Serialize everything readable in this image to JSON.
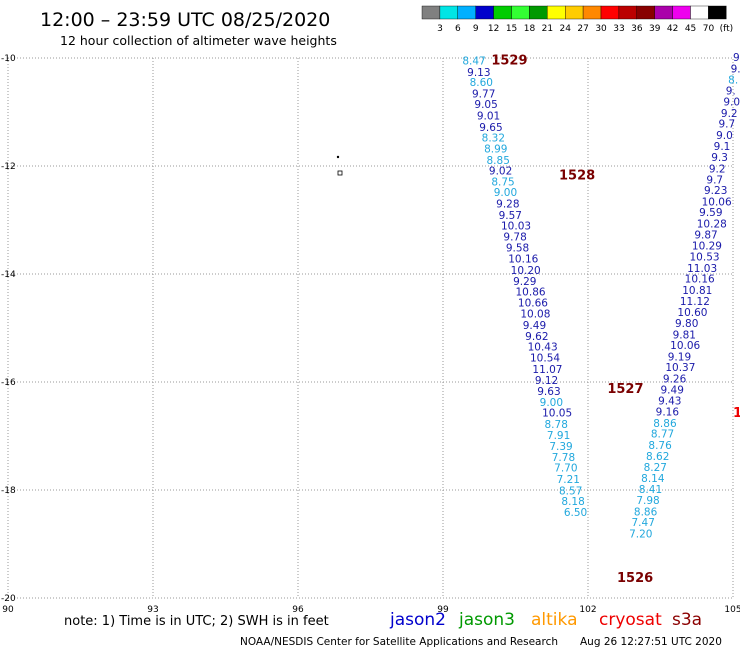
{
  "header": {
    "title": "12:00 – 23:59 UTC 08/25/2020",
    "subtitle": "12 hour collection of altimeter wave heights"
  },
  "legend": {
    "colors": [
      "#808080",
      "#00e5e5",
      "#00b0ff",
      "#0000cc",
      "#00cc00",
      "#33ff33",
      "#009900",
      "#ffff00",
      "#ffcc00",
      "#ff8800",
      "#ff0000",
      "#bb0000",
      "#880000",
      "#aa00aa",
      "#ee00ee",
      "#ffffff",
      "#000000"
    ],
    "labels": [
      "3",
      "6",
      "9",
      "12",
      "15",
      "18",
      "21",
      "24",
      "27",
      "30",
      "33",
      "36",
      "39",
      "42",
      "45",
      "70",
      "(ft)"
    ]
  },
  "axes": {
    "lon_labels": [
      "90",
      "93",
      "96",
      "99",
      "102",
      "105"
    ],
    "lat_labels": [
      "-10",
      "-12",
      "-14",
      "-16",
      "-18",
      "-20"
    ],
    "lon_min": 90,
    "lon_max": 105,
    "lat_min": -20,
    "lat_max": -10
  },
  "colors": {
    "jason2": "#0000cc",
    "jason3": "#009900",
    "altika": "#ff9900",
    "cryosat": "#ee0000",
    "s3a": "#8b0000",
    "light": "#22a8dd",
    "dark": "#1a1aaa",
    "pass": "#7a0000",
    "grid": "#999999"
  },
  "passes": [
    {
      "label": "1529",
      "lon": 100.0,
      "lat": -10.12
    },
    {
      "label": "1528",
      "lon": 101.4,
      "lat": -12.25
    },
    {
      "label": "1527",
      "lon": 102.4,
      "lat": -16.2
    },
    {
      "label": "1526",
      "lon": 102.6,
      "lat": -19.7
    }
  ],
  "partial_pass": {
    "label": "1",
    "lon": 105.0,
    "lat": -16.65
  },
  "tracks": [
    {
      "name": "west",
      "points": [
        {
          "v": "8.47",
          "lon": 99.4,
          "lat": -10.12,
          "c": "light"
        },
        {
          "v": "9.13",
          "lon": 99.5,
          "lat": -10.33,
          "c": "dark"
        },
        {
          "v": "8.60",
          "lon": 99.55,
          "lat": -10.52,
          "c": "light"
        },
        {
          "v": "9.77",
          "lon": 99.6,
          "lat": -10.73,
          "c": "dark"
        },
        {
          "v": "9.05",
          "lon": 99.65,
          "lat": -10.93,
          "c": "dark"
        },
        {
          "v": "9.01",
          "lon": 99.7,
          "lat": -11.14,
          "c": "dark"
        },
        {
          "v": "9.65",
          "lon": 99.75,
          "lat": -11.35,
          "c": "dark"
        },
        {
          "v": "8.32",
          "lon": 99.8,
          "lat": -11.55,
          "c": "light"
        },
        {
          "v": "8.99",
          "lon": 99.85,
          "lat": -11.75,
          "c": "light"
        },
        {
          "v": "8.85",
          "lon": 99.9,
          "lat": -11.96,
          "c": "light"
        },
        {
          "v": "9.02",
          "lon": 99.95,
          "lat": -12.16,
          "c": "dark"
        },
        {
          "v": "8.75",
          "lon": 100.0,
          "lat": -12.36,
          "c": "light"
        },
        {
          "v": "9.00",
          "lon": 100.05,
          "lat": -12.56,
          "c": "light"
        },
        {
          "v": "9.28",
          "lon": 100.1,
          "lat": -12.77,
          "c": "dark"
        },
        {
          "v": "9.57",
          "lon": 100.15,
          "lat": -12.98,
          "c": "dark"
        },
        {
          "v": "10.03",
          "lon": 100.2,
          "lat": -13.18,
          "c": "dark"
        },
        {
          "v": "9.78",
          "lon": 100.25,
          "lat": -13.38,
          "c": "dark"
        },
        {
          "v": "9.58",
          "lon": 100.3,
          "lat": -13.58,
          "c": "dark"
        },
        {
          "v": "10.16",
          "lon": 100.35,
          "lat": -13.79,
          "c": "dark"
        },
        {
          "v": "10.20",
          "lon": 100.4,
          "lat": -14.0,
          "c": "dark"
        },
        {
          "v": "9.29",
          "lon": 100.45,
          "lat": -14.2,
          "c": "dark"
        },
        {
          "v": "10.86",
          "lon": 100.5,
          "lat": -14.4,
          "c": "dark"
        },
        {
          "v": "10.66",
          "lon": 100.55,
          "lat": -14.6,
          "c": "dark"
        },
        {
          "v": "10.08",
          "lon": 100.6,
          "lat": -14.81,
          "c": "dark"
        },
        {
          "v": "9.49",
          "lon": 100.65,
          "lat": -15.02,
          "c": "dark"
        },
        {
          "v": "9.62",
          "lon": 100.7,
          "lat": -15.22,
          "c": "dark"
        },
        {
          "v": "10.43",
          "lon": 100.75,
          "lat": -15.42,
          "c": "dark"
        },
        {
          "v": "10.54",
          "lon": 100.8,
          "lat": -15.62,
          "c": "dark"
        },
        {
          "v": "11.07",
          "lon": 100.85,
          "lat": -15.83,
          "c": "dark"
        },
        {
          "v": "9.12",
          "lon": 100.9,
          "lat": -16.04,
          "c": "dark"
        },
        {
          "v": "9.63",
          "lon": 100.95,
          "lat": -16.24,
          "c": "dark"
        },
        {
          "v": "9.00",
          "lon": 101.0,
          "lat": -16.44,
          "c": "light"
        },
        {
          "v": "10.05",
          "lon": 101.05,
          "lat": -16.64,
          "c": "dark"
        },
        {
          "v": "8.78",
          "lon": 101.1,
          "lat": -16.85,
          "c": "light"
        },
        {
          "v": "7.91",
          "lon": 101.15,
          "lat": -17.06,
          "c": "light"
        },
        {
          "v": "7.39",
          "lon": 101.2,
          "lat": -17.26,
          "c": "light"
        },
        {
          "v": "7.78",
          "lon": 101.25,
          "lat": -17.46,
          "c": "light"
        },
        {
          "v": "7.70",
          "lon": 101.3,
          "lat": -17.66,
          "c": "light"
        },
        {
          "v": "7.21",
          "lon": 101.35,
          "lat": -17.87,
          "c": "light"
        },
        {
          "v": "8.57",
          "lon": 101.4,
          "lat": -18.08,
          "c": "light"
        },
        {
          "v": "8.18",
          "lon": 101.45,
          "lat": -18.28,
          "c": "light"
        },
        {
          "v": "6.50",
          "lon": 101.5,
          "lat": -18.48,
          "c": "light"
        }
      ]
    },
    {
      "name": "east",
      "points": [
        {
          "v": "9",
          "lon": 105.0,
          "lat": -10.06,
          "c": "dark"
        },
        {
          "v": "9.",
          "lon": 104.95,
          "lat": -10.27,
          "c": "dark"
        },
        {
          "v": "8.",
          "lon": 104.9,
          "lat": -10.47,
          "c": "light"
        },
        {
          "v": "9.",
          "lon": 104.85,
          "lat": -10.68,
          "c": "dark"
        },
        {
          "v": "9.0",
          "lon": 104.8,
          "lat": -10.88,
          "c": "dark"
        },
        {
          "v": "9.2",
          "lon": 104.75,
          "lat": -11.09,
          "c": "dark"
        },
        {
          "v": "9.7",
          "lon": 104.7,
          "lat": -11.29,
          "c": "dark"
        },
        {
          "v": "9.0",
          "lon": 104.65,
          "lat": -11.5,
          "c": "dark"
        },
        {
          "v": "9.1",
          "lon": 104.6,
          "lat": -11.7,
          "c": "dark"
        },
        {
          "v": "9.3",
          "lon": 104.55,
          "lat": -11.91,
          "c": "dark"
        },
        {
          "v": "9.2",
          "lon": 104.5,
          "lat": -12.12,
          "c": "dark"
        },
        {
          "v": "9.7",
          "lon": 104.45,
          "lat": -12.32,
          "c": "dark"
        },
        {
          "v": "9.23",
          "lon": 104.4,
          "lat": -12.52,
          "c": "dark"
        },
        {
          "v": "10.06",
          "lon": 104.35,
          "lat": -12.73,
          "c": "dark"
        },
        {
          "v": "9.59",
          "lon": 104.3,
          "lat": -12.93,
          "c": "dark"
        },
        {
          "v": "10.28",
          "lon": 104.25,
          "lat": -13.14,
          "c": "dark"
        },
        {
          "v": "9.87",
          "lon": 104.2,
          "lat": -13.34,
          "c": "dark"
        },
        {
          "v": "10.29",
          "lon": 104.15,
          "lat": -13.55,
          "c": "dark"
        },
        {
          "v": "10.53",
          "lon": 104.1,
          "lat": -13.75,
          "c": "dark"
        },
        {
          "v": "11.03",
          "lon": 104.05,
          "lat": -13.96,
          "c": "dark"
        },
        {
          "v": "10.16",
          "lon": 104.0,
          "lat": -14.16,
          "c": "dark"
        },
        {
          "v": "10.81",
          "lon": 103.95,
          "lat": -14.37,
          "c": "dark"
        },
        {
          "v": "11.12",
          "lon": 103.9,
          "lat": -14.57,
          "c": "dark"
        },
        {
          "v": "10.60",
          "lon": 103.85,
          "lat": -14.78,
          "c": "dark"
        },
        {
          "v": "9.80",
          "lon": 103.8,
          "lat": -14.98,
          "c": "dark"
        },
        {
          "v": "9.81",
          "lon": 103.75,
          "lat": -15.19,
          "c": "dark"
        },
        {
          "v": "10.06",
          "lon": 103.7,
          "lat": -15.39,
          "c": "dark"
        },
        {
          "v": "9.19",
          "lon": 103.65,
          "lat": -15.6,
          "c": "dark"
        },
        {
          "v": "10.37",
          "lon": 103.6,
          "lat": -15.8,
          "c": "dark"
        },
        {
          "v": "9.26",
          "lon": 103.55,
          "lat": -16.01,
          "c": "dark"
        },
        {
          "v": "9.49",
          "lon": 103.5,
          "lat": -16.21,
          "c": "dark"
        },
        {
          "v": "9.43",
          "lon": 103.45,
          "lat": -16.42,
          "c": "dark"
        },
        {
          "v": "9.16",
          "lon": 103.4,
          "lat": -16.62,
          "c": "dark"
        },
        {
          "v": "8.86",
          "lon": 103.35,
          "lat": -16.83,
          "c": "light"
        },
        {
          "v": "8.77",
          "lon": 103.3,
          "lat": -17.03,
          "c": "light"
        },
        {
          "v": "8.76",
          "lon": 103.25,
          "lat": -17.24,
          "c": "light"
        },
        {
          "v": "8.62",
          "lon": 103.2,
          "lat": -17.44,
          "c": "light"
        },
        {
          "v": "8.27",
          "lon": 103.15,
          "lat": -17.65,
          "c": "light"
        },
        {
          "v": "8.14",
          "lon": 103.1,
          "lat": -17.85,
          "c": "light"
        },
        {
          "v": "8.41",
          "lon": 103.05,
          "lat": -18.06,
          "c": "light"
        },
        {
          "v": "7.98",
          "lon": 103.0,
          "lat": -18.26,
          "c": "light"
        },
        {
          "v": "8.86",
          "lon": 102.95,
          "lat": -18.47,
          "c": "light"
        },
        {
          "v": "7.47",
          "lon": 102.9,
          "lat": -18.67,
          "c": "light"
        },
        {
          "v": "7.20",
          "lon": 102.85,
          "lat": -18.88,
          "c": "light"
        }
      ]
    }
  ],
  "footer": {
    "note": "note: 1) Time is in UTC; 2) SWH is in feet",
    "satellites": [
      "jason2",
      "jason3",
      "altika",
      "cryosat",
      "s3a"
    ],
    "credit": "NOAA/NESDIS Center for Satellite Applications and Research",
    "timestamp": "Aug 26 12:27:51 UTC 2020"
  }
}
